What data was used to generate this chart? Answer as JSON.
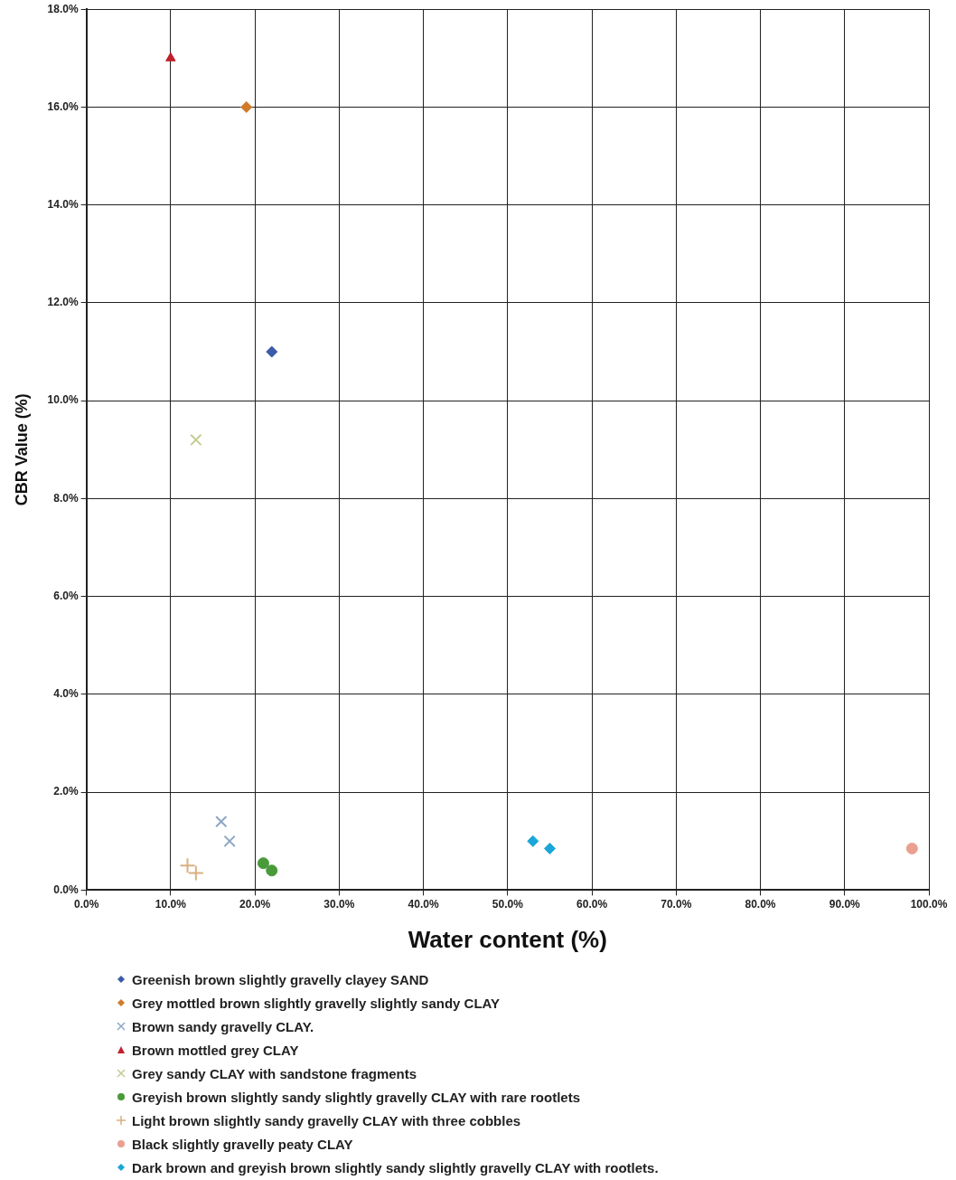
{
  "chart_data": {
    "type": "scatter",
    "xlabel": "Water content (%)",
    "ylabel": "CBR Value (%)",
    "xlim": [
      0,
      100
    ],
    "ylim": [
      0,
      18
    ],
    "xticks": [
      {
        "value": 0,
        "label": "0.0%"
      },
      {
        "value": 10,
        "label": "10.0%"
      },
      {
        "value": 20,
        "label": "20.0%"
      },
      {
        "value": 30,
        "label": "30.0%"
      },
      {
        "value": 40,
        "label": "40.0%"
      },
      {
        "value": 50,
        "label": "50.0%"
      },
      {
        "value": 60,
        "label": "60.0%"
      },
      {
        "value": 70,
        "label": "70.0%"
      },
      {
        "value": 80,
        "label": "80.0%"
      },
      {
        "value": 90,
        "label": "90.0%"
      },
      {
        "value": 100,
        "label": "100.0%"
      }
    ],
    "yticks": [
      {
        "value": 0,
        "label": "0.0%"
      },
      {
        "value": 2,
        "label": "2.0%"
      },
      {
        "value": 4,
        "label": "4.0%"
      },
      {
        "value": 6,
        "label": "6.0%"
      },
      {
        "value": 8,
        "label": "8.0%"
      },
      {
        "value": 10,
        "label": "10.0%"
      },
      {
        "value": 12,
        "label": "12.0%"
      },
      {
        "value": 14,
        "label": "14.0%"
      },
      {
        "value": 16,
        "label": "16.0%"
      },
      {
        "value": 18,
        "label": "18.0%"
      }
    ],
    "grid": true,
    "legend": "bottom",
    "series": [
      {
        "name": "Greenish brown slightly gravelly clayey SAND",
        "color": "#3a5ba8",
        "marker": "diamond",
        "x": [
          22
        ],
        "values": [
          11.0
        ]
      },
      {
        "name": "Grey mottled brown slightly gravelly slightly sandy CLAY",
        "color": "#d07a2a",
        "marker": "diamond",
        "x": [
          19
        ],
        "values": [
          16.0
        ]
      },
      {
        "name": "Brown sandy gravelly CLAY.",
        "color": "#8fa6c4",
        "marker": "cross",
        "x": [
          16,
          17
        ],
        "values": [
          1.4,
          1.0
        ]
      },
      {
        "name": "Brown mottled grey CLAY",
        "color": "#c0202e",
        "marker": "triangle",
        "x": [
          10
        ],
        "values": [
          17.0
        ]
      },
      {
        "name": "Grey sandy CLAY with sandstone fragments",
        "color": "#c2cc94",
        "marker": "cross",
        "x": [
          13
        ],
        "values": [
          9.2
        ]
      },
      {
        "name": "Greyish brown slightly sandy slightly gravelly CLAY with rare rootlets",
        "color": "#4a9a3a",
        "marker": "circle",
        "x": [
          21,
          22
        ],
        "values": [
          0.55,
          0.4
        ]
      },
      {
        "name": "Light brown slightly sandy gravelly CLAY with three cobbles",
        "color": "#d8b080",
        "marker": "plus",
        "x": [
          12,
          13
        ],
        "values": [
          0.5,
          0.35
        ]
      },
      {
        "name": "Black slightly gravelly peaty CLAY",
        "color": "#eaa090",
        "marker": "circle",
        "x": [
          98
        ],
        "values": [
          0.85
        ]
      },
      {
        "name": "Dark brown and greyish brown slightly sandy slightly gravelly CLAY with rootlets.",
        "color": "#1aa6d8",
        "marker": "diamond",
        "x": [
          53,
          55
        ],
        "values": [
          1.0,
          0.85
        ]
      }
    ]
  }
}
